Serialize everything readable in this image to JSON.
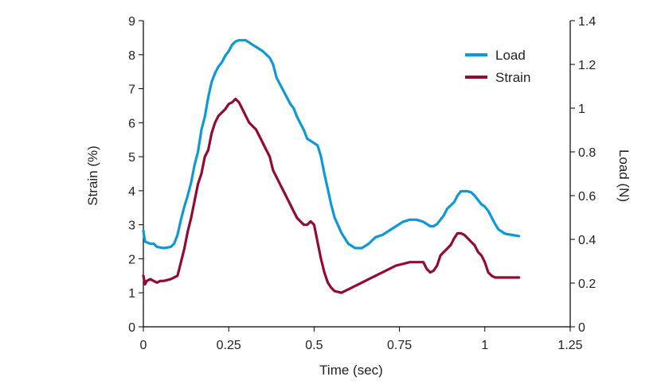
{
  "chart_data": {
    "type": "line",
    "xlabel": "Time (sec)",
    "ylabel_left": "Strain (%)",
    "ylabel_right": "Load (N)",
    "xlim": [
      0,
      1.25
    ],
    "ylim_left": [
      0,
      9
    ],
    "ylim_right": [
      0,
      1.4
    ],
    "x_ticks": [
      "0",
      "0.25",
      "0.5",
      "0.75",
      "1",
      "1.25"
    ],
    "y_left_ticks": [
      "0",
      "1",
      "2",
      "3",
      "4",
      "5",
      "6",
      "7",
      "8",
      "9"
    ],
    "y_right_ticks": [
      "0",
      "0.2",
      "0.4",
      "0.6",
      "0.8",
      "1",
      "1.2",
      "1.4"
    ],
    "grid": false,
    "legend_position": "top-right",
    "series": [
      {
        "name": "Load",
        "axis": "right",
        "color": "#0f98d6",
        "x": [
          0,
          0.005,
          0.02,
          0.03,
          0.04,
          0.06,
          0.08,
          0.09,
          0.1,
          0.11,
          0.12,
          0.13,
          0.14,
          0.15,
          0.16,
          0.17,
          0.18,
          0.19,
          0.2,
          0.21,
          0.22,
          0.23,
          0.24,
          0.25,
          0.26,
          0.27,
          0.28,
          0.3,
          0.32,
          0.33,
          0.35,
          0.37,
          0.38,
          0.39,
          0.4,
          0.41,
          0.42,
          0.43,
          0.44,
          0.45,
          0.46,
          0.47,
          0.48,
          0.49,
          0.5,
          0.51,
          0.52,
          0.53,
          0.54,
          0.55,
          0.56,
          0.58,
          0.6,
          0.62,
          0.64,
          0.66,
          0.68,
          0.7,
          0.72,
          0.74,
          0.76,
          0.78,
          0.8,
          0.82,
          0.84,
          0.85,
          0.86,
          0.87,
          0.88,
          0.89,
          0.9,
          0.91,
          0.92,
          0.93,
          0.94,
          0.95,
          0.96,
          0.97,
          0.98,
          0.99,
          1.0,
          1.01,
          1.02,
          1.03,
          1.04,
          1.06,
          1.08,
          1.1
        ],
        "values": [
          0.44,
          0.39,
          0.38,
          0.38,
          0.365,
          0.36,
          0.365,
          0.38,
          0.42,
          0.49,
          0.55,
          0.6,
          0.66,
          0.74,
          0.8,
          0.9,
          0.96,
          1.05,
          1.12,
          1.16,
          1.19,
          1.21,
          1.24,
          1.26,
          1.29,
          1.305,
          1.31,
          1.31,
          1.29,
          1.28,
          1.26,
          1.23,
          1.2,
          1.14,
          1.11,
          1.08,
          1.05,
          1.02,
          1.0,
          0.96,
          0.93,
          0.9,
          0.86,
          0.85,
          0.84,
          0.83,
          0.78,
          0.7,
          0.63,
          0.56,
          0.5,
          0.43,
          0.38,
          0.36,
          0.36,
          0.38,
          0.41,
          0.42,
          0.44,
          0.46,
          0.48,
          0.49,
          0.49,
          0.48,
          0.46,
          0.46,
          0.47,
          0.49,
          0.51,
          0.54,
          0.555,
          0.57,
          0.6,
          0.62,
          0.62,
          0.62,
          0.615,
          0.6,
          0.58,
          0.56,
          0.55,
          0.53,
          0.5,
          0.47,
          0.445,
          0.425,
          0.42,
          0.415
        ]
      },
      {
        "name": "Strain",
        "axis": "left",
        "color": "#930a32",
        "x": [
          0,
          0.005,
          0.01,
          0.02,
          0.03,
          0.04,
          0.05,
          0.06,
          0.08,
          0.09,
          0.1,
          0.11,
          0.12,
          0.13,
          0.14,
          0.15,
          0.16,
          0.17,
          0.18,
          0.19,
          0.2,
          0.21,
          0.22,
          0.23,
          0.24,
          0.25,
          0.26,
          0.27,
          0.28,
          0.29,
          0.3,
          0.31,
          0.32,
          0.33,
          0.34,
          0.35,
          0.36,
          0.37,
          0.38,
          0.39,
          0.4,
          0.41,
          0.42,
          0.43,
          0.44,
          0.45,
          0.46,
          0.47,
          0.48,
          0.49,
          0.5,
          0.51,
          0.52,
          0.53,
          0.54,
          0.55,
          0.56,
          0.58,
          0.6,
          0.62,
          0.64,
          0.66,
          0.68,
          0.7,
          0.72,
          0.74,
          0.76,
          0.78,
          0.8,
          0.82,
          0.83,
          0.84,
          0.85,
          0.86,
          0.87,
          0.88,
          0.89,
          0.9,
          0.91,
          0.92,
          0.93,
          0.94,
          0.95,
          0.96,
          0.97,
          0.98,
          0.99,
          1.0,
          1.01,
          1.02,
          1.03,
          1.04,
          1.06,
          1.08,
          1.1
        ],
        "values": [
          1.5,
          1.25,
          1.35,
          1.4,
          1.35,
          1.3,
          1.35,
          1.35,
          1.4,
          1.45,
          1.5,
          1.9,
          2.3,
          2.8,
          3.2,
          3.7,
          4.2,
          4.5,
          5.0,
          5.2,
          5.7,
          6.0,
          6.2,
          6.3,
          6.4,
          6.55,
          6.6,
          6.7,
          6.6,
          6.4,
          6.2,
          6.0,
          5.9,
          5.8,
          5.6,
          5.4,
          5.2,
          5.0,
          4.6,
          4.4,
          4.2,
          4.0,
          3.8,
          3.6,
          3.4,
          3.2,
          3.1,
          3.0,
          3.0,
          3.1,
          3.0,
          2.5,
          2.0,
          1.6,
          1.3,
          1.15,
          1.05,
          1.0,
          1.1,
          1.2,
          1.3,
          1.4,
          1.5,
          1.6,
          1.7,
          1.8,
          1.85,
          1.9,
          1.9,
          1.9,
          1.7,
          1.6,
          1.65,
          1.8,
          2.1,
          2.2,
          2.3,
          2.4,
          2.6,
          2.75,
          2.75,
          2.7,
          2.6,
          2.5,
          2.4,
          2.2,
          2.1,
          1.9,
          1.6,
          1.5,
          1.45,
          1.45,
          1.45,
          1.45,
          1.45
        ]
      }
    ]
  }
}
